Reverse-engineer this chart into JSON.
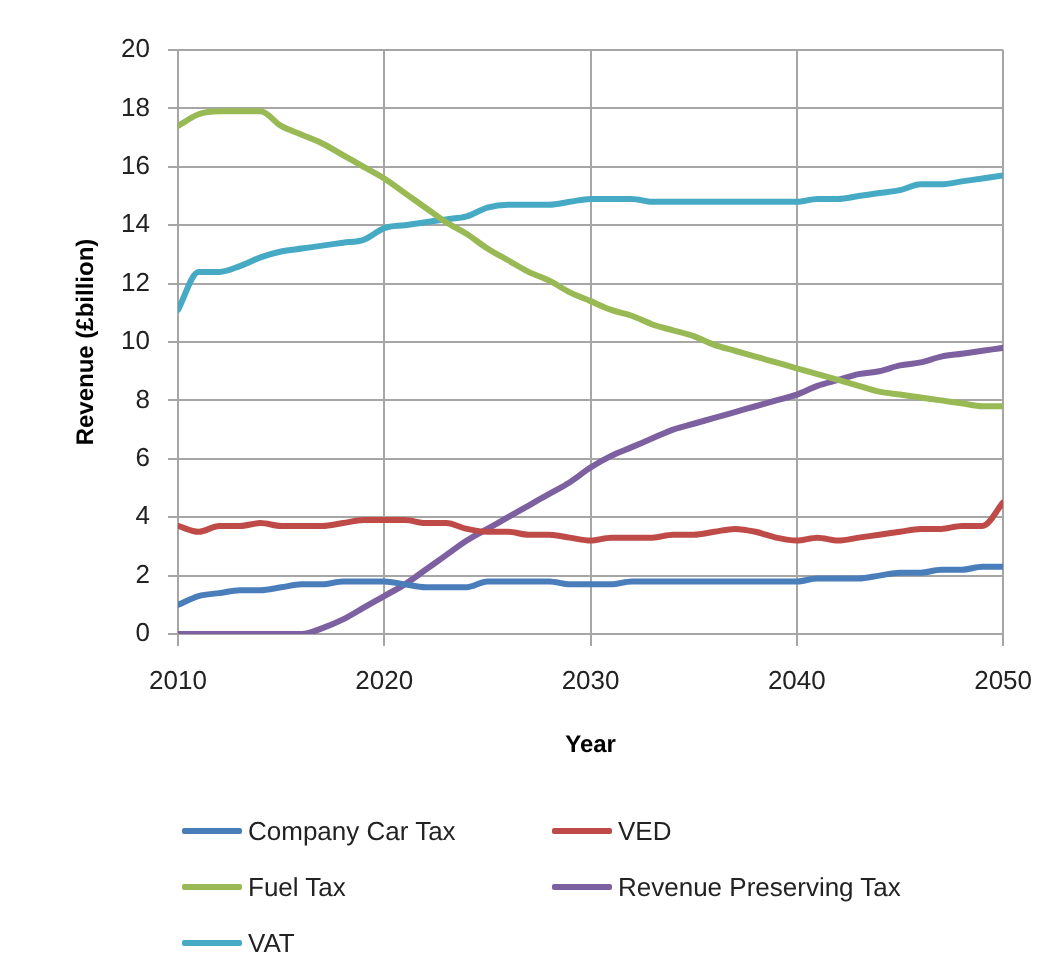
{
  "chart_data": {
    "type": "line",
    "xlabel": "Year",
    "ylabel": "Revenue (£billion)",
    "x": [
      2010,
      2011,
      2012,
      2013,
      2014,
      2015,
      2016,
      2017,
      2018,
      2019,
      2020,
      2021,
      2022,
      2023,
      2024,
      2025,
      2026,
      2027,
      2028,
      2029,
      2030,
      2031,
      2032,
      2033,
      2034,
      2035,
      2036,
      2037,
      2038,
      2039,
      2040,
      2041,
      2042,
      2043,
      2044,
      2045,
      2046,
      2047,
      2048,
      2049,
      2050
    ],
    "series": [
      {
        "name": "Company Car Tax",
        "color": "#4a7ebb",
        "values": [
          1.0,
          1.3,
          1.4,
          1.5,
          1.5,
          1.6,
          1.7,
          1.7,
          1.8,
          1.8,
          1.8,
          1.7,
          1.6,
          1.6,
          1.6,
          1.8,
          1.8,
          1.8,
          1.8,
          1.7,
          1.7,
          1.7,
          1.8,
          1.8,
          1.8,
          1.8,
          1.8,
          1.8,
          1.8,
          1.8,
          1.8,
          1.9,
          1.9,
          1.9,
          2.0,
          2.1,
          2.1,
          2.2,
          2.2,
          2.3,
          2.3
        ]
      },
      {
        "name": "VED",
        "color": "#be4b48",
        "values": [
          3.7,
          3.5,
          3.7,
          3.7,
          3.8,
          3.7,
          3.7,
          3.7,
          3.8,
          3.9,
          3.9,
          3.9,
          3.8,
          3.8,
          3.6,
          3.5,
          3.5,
          3.4,
          3.4,
          3.3,
          3.2,
          3.3,
          3.3,
          3.3,
          3.4,
          3.4,
          3.5,
          3.6,
          3.5,
          3.3,
          3.2,
          3.3,
          3.2,
          3.3,
          3.4,
          3.5,
          3.6,
          3.6,
          3.7,
          3.7,
          4.5
        ]
      },
      {
        "name": "Fuel Tax",
        "color": "#98b954",
        "values": [
          17.4,
          17.8,
          17.9,
          17.9,
          17.9,
          17.4,
          17.1,
          16.8,
          16.4,
          16.0,
          15.6,
          15.1,
          14.6,
          14.1,
          13.7,
          13.2,
          12.8,
          12.4,
          12.1,
          11.7,
          11.4,
          11.1,
          10.9,
          10.6,
          10.4,
          10.2,
          9.9,
          9.7,
          9.5,
          9.3,
          9.1,
          8.9,
          8.7,
          8.5,
          8.3,
          8.2,
          8.1,
          8.0,
          7.9,
          7.8,
          7.8
        ]
      },
      {
        "name": "Revenue Preserving Tax",
        "color": "#7d60a0",
        "values": [
          0,
          0,
          0,
          0,
          0,
          0,
          0,
          0.2,
          0.5,
          0.9,
          1.3,
          1.7,
          2.2,
          2.7,
          3.2,
          3.6,
          4.0,
          4.4,
          4.8,
          5.2,
          5.7,
          6.1,
          6.4,
          6.7,
          7.0,
          7.2,
          7.4,
          7.6,
          7.8,
          8.0,
          8.2,
          8.5,
          8.7,
          8.9,
          9.0,
          9.2,
          9.3,
          9.5,
          9.6,
          9.7,
          9.8
        ]
      },
      {
        "name": "VAT",
        "color": "#46aac5",
        "values": [
          11.1,
          12.4,
          12.4,
          12.6,
          12.9,
          13.1,
          13.2,
          13.3,
          13.4,
          13.5,
          13.9,
          14.0,
          14.1,
          14.2,
          14.3,
          14.6,
          14.7,
          14.7,
          14.7,
          14.8,
          14.9,
          14.9,
          14.9,
          14.8,
          14.8,
          14.8,
          14.8,
          14.8,
          14.8,
          14.8,
          14.8,
          14.9,
          14.9,
          15.0,
          15.1,
          15.2,
          15.4,
          15.4,
          15.5,
          15.6,
          15.7
        ]
      }
    ],
    "xlim": [
      2010,
      2050
    ],
    "xticks": [
      2010,
      2020,
      2030,
      2040,
      2050
    ],
    "ylim": [
      0,
      20
    ],
    "yticks": [
      0,
      2,
      4,
      6,
      8,
      10,
      12,
      14,
      16,
      18,
      20
    ],
    "grid": true,
    "legend": "bottom",
    "marker": "none"
  }
}
